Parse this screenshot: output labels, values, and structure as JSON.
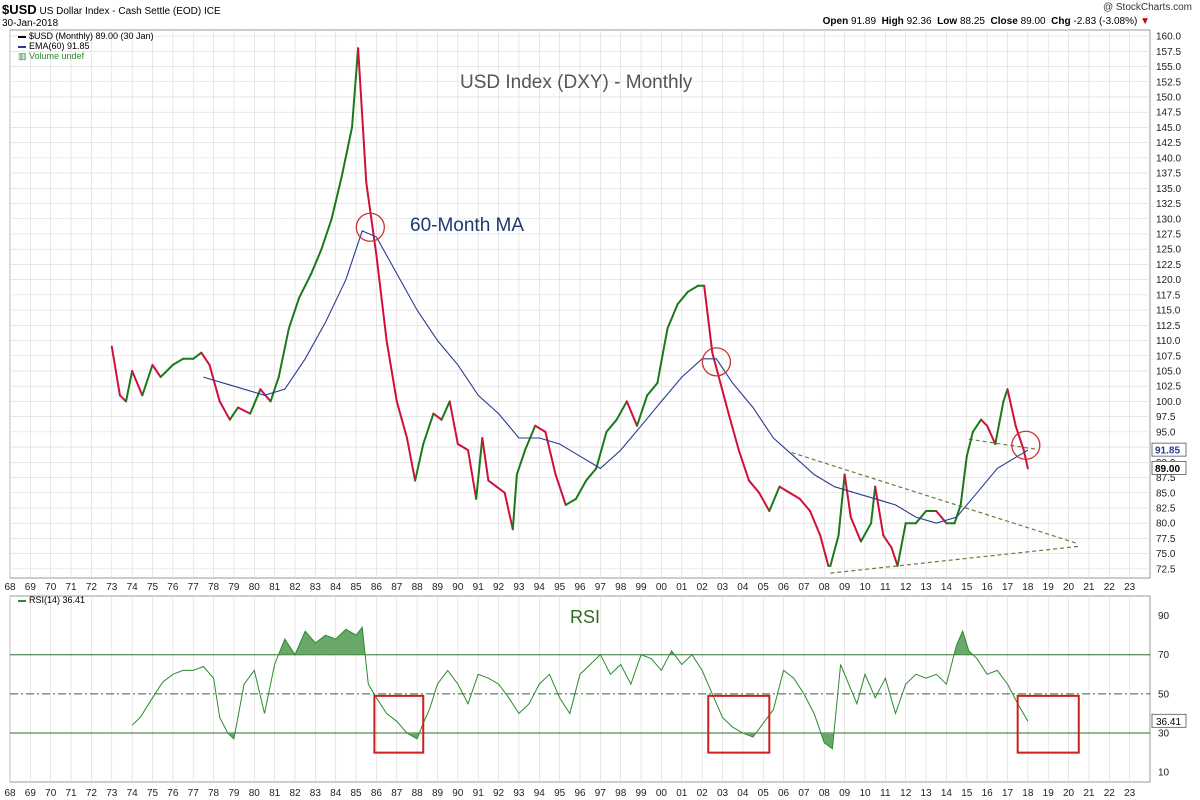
{
  "header": {
    "symbol": "$USD",
    "name": "US Dollar Index - Cash Settle (EOD)",
    "exchange": "ICE",
    "date": "30-Jan-2018",
    "watermark": "@ StockCharts.com",
    "open_label": "Open",
    "open": "91.89",
    "high_label": "High",
    "high": "92.36",
    "low_label": "Low",
    "low": "88.25",
    "close_label": "Close",
    "close": "89.00",
    "chg_label": "Chg",
    "chg": "-2.83 (-3.08%)"
  },
  "legend": {
    "price": "$USD (Monthly) 89.00 (30 Jan)",
    "ema": "EMA(60) 91.85",
    "volume": "Volume undef",
    "rsi": "RSI(14) 36.41"
  },
  "colors": {
    "up": "#1a7a1a",
    "down": "#d0103a",
    "ema": "#2b3a8f",
    "rsi": "#2d8a2d",
    "rsi_fill": "#6aa86a",
    "box": "#cc1f1f",
    "circle": "#cc3333",
    "trend": "#6b7a3a",
    "grid": "#d8d8d8"
  },
  "chart_data": [
    {
      "type": "line",
      "title": "USD Index (DXY) - Monthly",
      "annotation": "60-Month MA",
      "ylim": [
        71,
        161
      ],
      "yticks": [
        72.5,
        75,
        77.5,
        80,
        82.5,
        85,
        87.5,
        90,
        92.5,
        95,
        97.5,
        100,
        102.5,
        105,
        107.5,
        110,
        112.5,
        115,
        117.5,
        120,
        122.5,
        125,
        127.5,
        130,
        132.5,
        135,
        137.5,
        140,
        142.5,
        145,
        147.5,
        150,
        152.5,
        155,
        157.5,
        160
      ],
      "ytick_labels": [
        "72.5",
        "75.0",
        "77.5",
        "80.0",
        "82.5",
        "85.0",
        "87.5",
        "90.0",
        "92.5",
        "95.0",
        "97.5",
        "100.0",
        "102.5",
        "105.0",
        "107.5",
        "110.0",
        "112.5",
        "115.0",
        "117.5",
        "120.0",
        "122.5",
        "125.0",
        "127.5",
        "130.0",
        "132.5",
        "135.0",
        "137.5",
        "140.0",
        "142.5",
        "145.0",
        "147.5",
        "150.0",
        "152.5",
        "155.0",
        "157.5",
        "160.0"
      ],
      "xlim": [
        1968,
        2024
      ],
      "xticks": [
        1968,
        1969,
        1970,
        1971,
        1972,
        1973,
        1974,
        1975,
        1976,
        1977,
        1978,
        1979,
        1980,
        1981,
        1982,
        1983,
        1984,
        1985,
        1986,
        1987,
        1988,
        1989,
        1990,
        1991,
        1992,
        1993,
        1994,
        1995,
        1996,
        1997,
        1998,
        1999,
        2000,
        2001,
        2002,
        2003,
        2004,
        2005,
        2006,
        2007,
        2008,
        2009,
        2010,
        2011,
        2012,
        2013,
        2014,
        2015,
        2016,
        2017,
        2018,
        2019,
        2020,
        2021,
        2022,
        2023
      ],
      "xtick_labels": [
        "68",
        "69",
        "70",
        "71",
        "72",
        "73",
        "74",
        "75",
        "76",
        "77",
        "78",
        "79",
        "80",
        "81",
        "82",
        "83",
        "84",
        "85",
        "86",
        "87",
        "88",
        "89",
        "90",
        "91",
        "92",
        "93",
        "94",
        "95",
        "96",
        "97",
        "98",
        "99",
        "00",
        "01",
        "02",
        "03",
        "04",
        "05",
        "06",
        "07",
        "08",
        "09",
        "10",
        "11",
        "12",
        "13",
        "14",
        "15",
        "16",
        "17",
        "18",
        "19",
        "20",
        "21",
        "22",
        "23"
      ],
      "series": [
        {
          "name": "$USD (Monthly)",
          "x": [
            1973.0,
            1973.4,
            1973.7,
            1974.0,
            1974.5,
            1975.0,
            1975.4,
            1976.0,
            1976.5,
            1977.0,
            1977.4,
            1977.8,
            1978.3,
            1978.8,
            1979.2,
            1979.8,
            1980.3,
            1980.8,
            1981.2,
            1981.7,
            1982.2,
            1982.8,
            1983.3,
            1983.8,
            1984.3,
            1984.8,
            1985.1,
            1985.5,
            1986.0,
            1986.5,
            1987.0,
            1987.5,
            1987.9,
            1988.3,
            1988.8,
            1989.2,
            1989.6,
            1990.0,
            1990.5,
            1990.9,
            1991.2,
            1991.5,
            1991.9,
            1992.3,
            1992.7,
            1992.9,
            1993.3,
            1993.8,
            1994.3,
            1994.8,
            1995.3,
            1995.8,
            1996.3,
            1996.8,
            1997.3,
            1997.8,
            1998.3,
            1998.8,
            1999.3,
            1999.8,
            2000.3,
            2000.8,
            2001.3,
            2001.8,
            2002.1,
            2002.5,
            2002.9,
            2003.3,
            2003.8,
            2004.3,
            2004.8,
            2005.3,
            2005.8,
            2006.3,
            2006.8,
            2007.3,
            2007.8,
            2008.2,
            2008.3,
            2008.7,
            2009.0,
            2009.3,
            2009.8,
            2010.3,
            2010.5,
            2010.9,
            2011.3,
            2011.6,
            2012.0,
            2012.5,
            2013.0,
            2013.5,
            2014.0,
            2014.4,
            2014.7,
            2015.0,
            2015.3,
            2015.7,
            2016.0,
            2016.4,
            2016.8,
            2017.0,
            2017.4,
            2017.8,
            2018.0
          ],
          "values": [
            109,
            101,
            100,
            105,
            101,
            106,
            104,
            106,
            107,
            107,
            108,
            106,
            100,
            97,
            99,
            98,
            102,
            100,
            104,
            112,
            117,
            121,
            125,
            130,
            137,
            145,
            158,
            136,
            124,
            110,
            100,
            94,
            87,
            93,
            98,
            97,
            100,
            93,
            92,
            84,
            94,
            87,
            86,
            85,
            79,
            88,
            92,
            96,
            95,
            88,
            83,
            84,
            87,
            89,
            95,
            97,
            100,
            96,
            101,
            103,
            112,
            116,
            118,
            119,
            119,
            108,
            103,
            98,
            92,
            87,
            85,
            82,
            86,
            85,
            84,
            82,
            78,
            73,
            73,
            78,
            88,
            81,
            77,
            80,
            86,
            78,
            76,
            73,
            80,
            80,
            82,
            82,
            80,
            80,
            83,
            91,
            95,
            97,
            96,
            93,
            100,
            102,
            96,
            92,
            89
          ]
        },
        {
          "name": "EMA(60)",
          "x": [
            1977.5,
            1978.5,
            1979.5,
            1980.5,
            1981.5,
            1982.5,
            1983.5,
            1984.5,
            1985.3,
            1986.0,
            1987.0,
            1988.0,
            1989.0,
            1990.0,
            1991.0,
            1992.0,
            1993.0,
            1994.0,
            1995.0,
            1996.0,
            1997.0,
            1998.0,
            1999.0,
            2000.0,
            2001.0,
            2002.0,
            2002.7,
            2003.5,
            2004.5,
            2005.5,
            2006.5,
            2007.5,
            2008.5,
            2009.5,
            2010.5,
            2011.5,
            2012.5,
            2013.5,
            2014.5,
            2015.5,
            2016.5,
            2017.5,
            2018.0
          ],
          "values": [
            104,
            103,
            102,
            101,
            102,
            107,
            113,
            120,
            128,
            127,
            121,
            115,
            110,
            106,
            101,
            98,
            94,
            94,
            93,
            91,
            89,
            92,
            96,
            100,
            104,
            107,
            107,
            103,
            99,
            94,
            91,
            88,
            86,
            85,
            84,
            83,
            81,
            80,
            81,
            85,
            89,
            91,
            92
          ]
        }
      ],
      "annotations": [
        {
          "type": "circle",
          "x": 1985.7,
          "y": 128.6
        },
        {
          "type": "circle",
          "x": 2002.7,
          "y": 106.5
        },
        {
          "type": "circle",
          "x": 2017.9,
          "y": 92.8
        },
        {
          "type": "trendline",
          "x": [
            2006.4,
            2020.5
          ],
          "y": [
            91.6,
            76.6
          ]
        },
        {
          "type": "trendline",
          "x": [
            2008.3,
            2020.5
          ],
          "y": [
            71.8,
            76.2
          ]
        },
        {
          "type": "trendline",
          "x": [
            2015.1,
            2018.5
          ],
          "y": [
            93.8,
            92.1
          ]
        }
      ],
      "last_labels": [
        {
          "series": "EMA(60)",
          "value": "91.85"
        },
        {
          "series": "$USD (Monthly)",
          "value": "89.00"
        }
      ]
    },
    {
      "type": "line",
      "title": "RSI",
      "ylim": [
        5,
        100
      ],
      "yticks": [
        10,
        30,
        50,
        70,
        90
      ],
      "ytick_labels": [
        "10",
        "30",
        "50",
        "70",
        "90"
      ],
      "reference_lines": [
        70,
        50,
        30
      ],
      "series": [
        {
          "name": "RSI(14)",
          "x": [
            1974.0,
            1974.4,
            1975.0,
            1975.5,
            1976.0,
            1976.5,
            1977.0,
            1977.5,
            1978.0,
            1978.3,
            1978.7,
            1979.0,
            1979.5,
            1980.0,
            1980.5,
            1981.0,
            1981.5,
            1982.0,
            1982.5,
            1983.0,
            1983.5,
            1984.0,
            1984.5,
            1985.0,
            1985.3,
            1985.6,
            1986.0,
            1986.5,
            1987.0,
            1987.5,
            1988.0,
            1988.3,
            1988.6,
            1989.0,
            1989.5,
            1990.0,
            1990.5,
            1991.0,
            1991.5,
            1992.0,
            1992.5,
            1993.0,
            1993.5,
            1994.0,
            1994.5,
            1995.0,
            1995.5,
            1996.0,
            1996.5,
            1997.0,
            1997.5,
            1998.0,
            1998.5,
            1999.0,
            1999.5,
            2000.0,
            2000.5,
            2001.0,
            2001.5,
            2002.0,
            2002.5,
            2003.0,
            2003.5,
            2004.0,
            2004.5,
            2005.0,
            2005.5,
            2006.0,
            2006.5,
            2007.0,
            2007.5,
            2008.0,
            2008.4,
            2008.8,
            2009.2,
            2009.6,
            2010.0,
            2010.5,
            2011.0,
            2011.5,
            2012.0,
            2012.5,
            2013.0,
            2013.5,
            2014.0,
            2014.5,
            2014.8,
            2015.1,
            2015.5,
            2016.0,
            2016.5,
            2017.0,
            2017.5,
            2018.0
          ],
          "values": [
            34,
            38,
            48,
            56,
            60,
            62,
            62,
            64,
            58,
            38,
            30,
            27,
            55,
            62,
            40,
            65,
            78,
            70,
            82,
            76,
            80,
            78,
            83,
            80,
            84,
            55,
            48,
            40,
            36,
            30,
            27,
            35,
            42,
            55,
            62,
            55,
            45,
            60,
            58,
            55,
            48,
            40,
            45,
            55,
            60,
            48,
            40,
            60,
            65,
            70,
            60,
            65,
            55,
            70,
            68,
            62,
            72,
            65,
            70,
            62,
            50,
            38,
            33,
            30,
            28,
            35,
            42,
            62,
            58,
            50,
            40,
            25,
            22,
            65,
            55,
            45,
            60,
            48,
            58,
            40,
            55,
            60,
            58,
            60,
            55,
            75,
            82,
            72,
            68,
            60,
            62,
            55,
            45,
            36
          ]
        }
      ],
      "boxes": [
        {
          "x": [
            1985.9,
            1988.3
          ],
          "y": [
            20,
            49
          ]
        },
        {
          "x": [
            2002.3,
            2005.3
          ],
          "y": [
            20,
            49
          ]
        },
        {
          "x": [
            2017.5,
            2020.5
          ],
          "y": [
            20,
            49
          ]
        }
      ],
      "last_label": "36.41"
    }
  ]
}
